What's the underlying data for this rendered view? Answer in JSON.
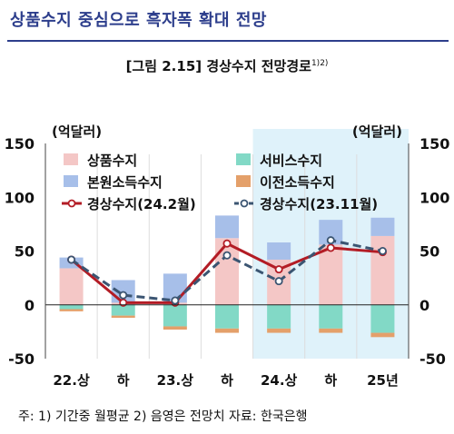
{
  "header": {
    "title": "상품수지 중심으로 흑자폭 확대 전망"
  },
  "figure": {
    "title": "[그림 2.15] 경상수지 전망경로",
    "title_sup": "1)2)"
  },
  "footnote": "주: 1) 기간중 월평균   2) 음영은 전망치   자료: 한국은행",
  "chart_data": {
    "type": "bar",
    "categories": [
      "22.상",
      "하",
      "23.상",
      "하",
      "24.상",
      "하",
      "25년"
    ],
    "ylim": [
      -50,
      150
    ],
    "yticks": [
      -50,
      0,
      50,
      100,
      150
    ],
    "ylabel_left": "(억달러)",
    "ylabel_right": "(억달러)",
    "shaded_from_index": 4,
    "stack_series": [
      {
        "name": "상품수지",
        "color": "#f4c7c6",
        "values": [
          34,
          2,
          2,
          62,
          42,
          56,
          64
        ]
      },
      {
        "name": "서비스수지",
        "color": "#82d9c6",
        "values": [
          -4,
          -10,
          -20,
          -22,
          -22,
          -22,
          -26
        ]
      },
      {
        "name": "본원소득수지",
        "color": "#a7bfe9",
        "values": [
          10,
          21,
          27,
          21,
          16,
          23,
          17
        ]
      },
      {
        "name": "이전소득수지",
        "color": "#e4a06a",
        "values": [
          -2,
          -2,
          -3,
          -4,
          -4,
          -4,
          -4
        ]
      }
    ],
    "line_series": [
      {
        "name": "경상수지(24.2월)",
        "color": "#b31c25",
        "style": "solid",
        "values": [
          42,
          2,
          2,
          57,
          33,
          53,
          49
        ]
      },
      {
        "name": "경상수지(23.11월)",
        "color": "#3b5572",
        "style": "dashed",
        "values": [
          42,
          9,
          4,
          46,
          22,
          60,
          50
        ]
      }
    ],
    "legend_position": "top"
  }
}
